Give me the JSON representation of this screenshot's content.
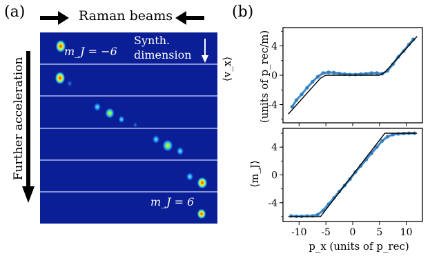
{
  "panel_a": {
    "label": "(a)",
    "top_arrow_label": "Raman beams",
    "side_arrow_label": "Further acceleration",
    "synth_label_1": "Synth.",
    "synth_label_2": "dimension",
    "mj_top_label": "m_J = −6",
    "mj_bottom_label": "m_J = 6",
    "colors": {
      "background": "#0a1a8c",
      "separator": "#d8d8ff"
    }
  },
  "panel_b": {
    "label": "(b)",
    "top_ylabel_main": "⟨v_x⟩",
    "top_ylabel_units": "(units of p_rec/m)",
    "bottom_ylabel": "⟨m_J⟩",
    "xlabel": "p_x (units of p_rec)"
  },
  "chart_data": [
    {
      "type": "scatter",
      "title": "",
      "ylabel": "⟨v_x⟩ (units of p_rec/m)",
      "xlabel": "",
      "xlim": [
        -13,
        13
      ],
      "ylim": [
        -6.5,
        6.5
      ],
      "yticks": [
        -4,
        0,
        4
      ],
      "grid": false,
      "series": [
        {
          "x": [
            -11.3,
            -10.5,
            -9.5,
            -8.5,
            -7.5,
            -6.5,
            -5.5,
            -4.5,
            -3.5,
            -2.5,
            -1.5,
            -0.5,
            0.5,
            1.5,
            2.5,
            3.5,
            4.5,
            5.5,
            6.5,
            7.5,
            8.5,
            9.5,
            10.5,
            11.3
          ],
          "y": [
            -4.3,
            -3.4,
            -2.6,
            -1.7,
            -0.9,
            -0.2,
            0.3,
            0.4,
            0.35,
            0.25,
            0.15,
            0.1,
            0.1,
            0.15,
            0.2,
            0.3,
            0.3,
            0.2,
            0.6,
            1.5,
            2.5,
            3.3,
            4.2,
            4.9
          ],
          "color": "#2f7fc1"
        },
        {
          "x": [
            -12,
            -6,
            -5,
            5,
            6,
            12
          ],
          "y": [
            -5.3,
            -0.4,
            0,
            0,
            0.4,
            5.3
          ],
          "color": "#000000"
        }
      ]
    },
    {
      "type": "scatter",
      "title": "",
      "ylabel": "⟨m_J⟩",
      "xlabel": "p_x (units of p_rec)",
      "xlim": [
        -13,
        13
      ],
      "ylim": [
        -6.7,
        6.7
      ],
      "xticks": [
        -10,
        -5,
        0,
        5,
        10
      ],
      "yticks": [
        -4,
        0,
        4
      ],
      "grid": false,
      "series": [
        {
          "x": [
            -11.5,
            -10.5,
            -9.5,
            -8.5,
            -7.5,
            -6.5,
            -5.5,
            -4.5,
            -3.5,
            -2.5,
            -1.5,
            -0.5,
            0.5,
            1.5,
            2.5,
            3.5,
            4.5,
            5.5,
            6.5,
            7.5,
            8.5,
            9.5,
            10.5,
            11.5
          ],
          "y": [
            -5.9,
            -5.95,
            -5.95,
            -5.9,
            -5.9,
            -5.7,
            -5.1,
            -4.2,
            -3.3,
            -2.4,
            -1.5,
            -0.6,
            0.4,
            1.3,
            2.2,
            3.1,
            4.0,
            4.9,
            5.5,
            5.8,
            5.9,
            5.95,
            6.0,
            6.0
          ],
          "color": "#2f7fc1"
        },
        {
          "x": [
            -12,
            -6,
            6,
            12
          ],
          "y": [
            -6,
            -6,
            6,
            6
          ],
          "color": "#000000"
        }
      ]
    }
  ]
}
